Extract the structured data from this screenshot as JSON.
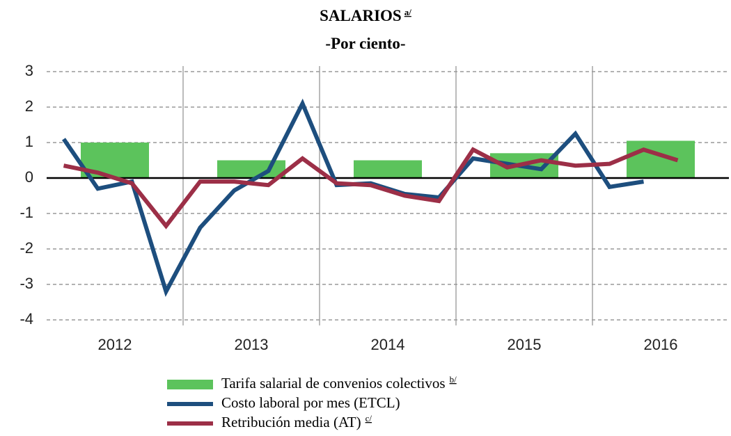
{
  "chart_data": {
    "type": "bar_line",
    "title": "SALARIOS",
    "title_note": "a/",
    "subtitle": "-Por ciento-",
    "categories": [
      "2012",
      "2013",
      "2014",
      "2015",
      "2016"
    ],
    "ylim": [
      -4,
      3
    ],
    "yticks": [
      -4,
      -3,
      -2,
      -1,
      0,
      1,
      2,
      3
    ],
    "grid": true,
    "series": [
      {
        "name": "Tarifa salarial de convenios colectivos",
        "note": "b/",
        "type": "bar",
        "color": "#5cc35c",
        "values": [
          1.0,
          0.5,
          0.5,
          0.7,
          1.05
        ]
      },
      {
        "name": "Costo laboral por mes (ETCL)",
        "type": "line",
        "color": "#1d4e7e",
        "values": [
          [
            1.1,
            -0.3,
            -0.1,
            -3.2
          ],
          [
            -1.4,
            -0.35,
            0.2,
            2.1
          ],
          [
            -0.2,
            -0.15,
            -0.45,
            -0.55
          ],
          [
            0.55,
            0.4,
            0.25,
            1.25
          ],
          [
            -0.25,
            -0.1,
            null,
            null
          ]
        ]
      },
      {
        "name": "Retribución media (AT)",
        "note": "c/",
        "type": "line",
        "color": "#9c2f47",
        "values": [
          [
            0.35,
            0.15,
            -0.15,
            -1.35
          ],
          [
            -0.1,
            -0.1,
            -0.2,
            0.55
          ],
          [
            -0.15,
            -0.2,
            -0.5,
            -0.65
          ],
          [
            0.8,
            0.3,
            0.5,
            0.35
          ],
          [
            0.4,
            0.8,
            0.5,
            null
          ]
        ]
      }
    ]
  }
}
